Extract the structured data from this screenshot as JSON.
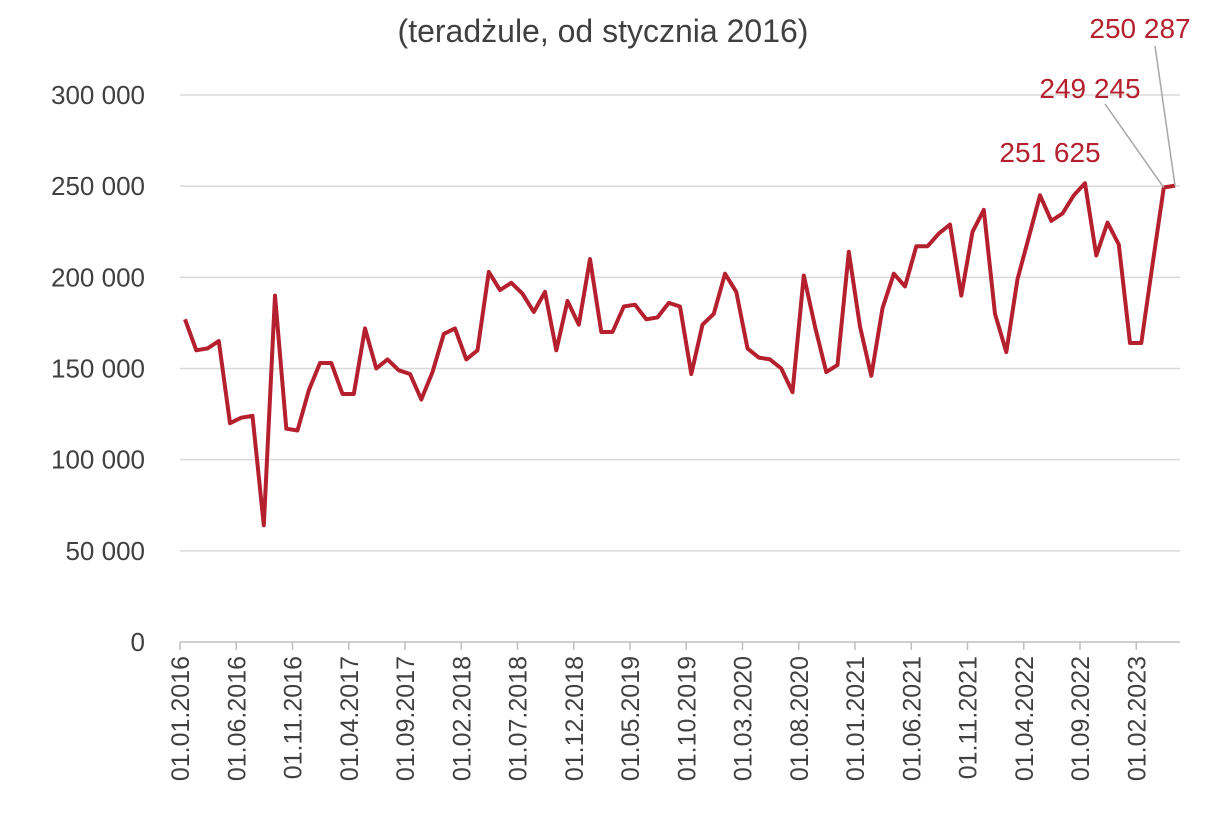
{
  "chart_data": {
    "type": "line",
    "title": "(teradżule, od stycznia 2016)",
    "categories": [
      "01.01.2016",
      null,
      null,
      null,
      null,
      "01.06.2016",
      null,
      null,
      null,
      null,
      "01.11.2016",
      null,
      null,
      null,
      null,
      "01.04.2017",
      null,
      null,
      null,
      null,
      "01.09.2017",
      null,
      null,
      null,
      null,
      "01.02.2018",
      null,
      null,
      null,
      null,
      "01.07.2018",
      null,
      null,
      null,
      null,
      "01.12.2018",
      null,
      null,
      null,
      null,
      "01.05.2019",
      null,
      null,
      null,
      null,
      "01.10.2019",
      null,
      null,
      null,
      null,
      "01.03.2020",
      null,
      null,
      null,
      null,
      "01.08.2020",
      null,
      null,
      null,
      null,
      "01.01.2021",
      null,
      null,
      null,
      null,
      "01.06.2021",
      null,
      null,
      null,
      null,
      "01.11.2021",
      null,
      null,
      null,
      null,
      "01.04.2022",
      null,
      null,
      null,
      null,
      "01.09.2022",
      null,
      null,
      null,
      null,
      "01.02.2023",
      null,
      null,
      null
    ],
    "series": [
      {
        "color": "#b5202e",
        "values": [
          177000,
          160000,
          161000,
          165000,
          120000,
          123000,
          124000,
          64000,
          190000,
          117000,
          116000,
          138000,
          153000,
          153000,
          136000,
          136000,
          172000,
          150000,
          155000,
          149000,
          147000,
          133000,
          148000,
          169000,
          172000,
          155000,
          160000,
          203000,
          193000,
          197000,
          191000,
          181000,
          192000,
          160000,
          187000,
          174000,
          210000,
          170000,
          170000,
          184000,
          185000,
          177000,
          178000,
          186000,
          184000,
          147000,
          174000,
          180000,
          202000,
          192000,
          161000,
          156000,
          155000,
          150000,
          137000,
          201000,
          173000,
          148000,
          152000,
          214000,
          173000,
          146000,
          183000,
          202000,
          195000,
          217000,
          217000,
          224000,
          229000,
          190000,
          225000,
          237000,
          180000,
          159000,
          199000,
          222000,
          245000,
          231000,
          235000,
          245000,
          251625,
          212000,
          230000,
          218000,
          164000,
          164000,
          207000,
          249245,
          250287
        ],
        "value_labels": [
          null,
          null,
          null,
          null,
          null,
          null,
          null,
          null,
          null,
          null,
          null,
          null,
          null,
          null,
          null,
          null,
          null,
          null,
          null,
          null,
          null,
          null,
          null,
          null,
          null,
          null,
          null,
          null,
          null,
          null,
          null,
          null,
          null,
          null,
          null,
          null,
          null,
          null,
          null,
          null,
          null,
          null,
          null,
          null,
          null,
          null,
          null,
          null,
          null,
          null,
          null,
          null,
          null,
          null,
          null,
          null,
          null,
          null,
          null,
          null,
          null,
          null,
          null,
          null,
          null,
          null,
          null,
          null,
          null,
          null,
          null,
          null,
          null,
          null,
          null,
          null,
          null,
          null,
          null,
          null,
          "251 625",
          null,
          null,
          null,
          null,
          null,
          null,
          "249 245",
          "250 287"
        ]
      }
    ],
    "ylim": [
      0,
      300000
    ],
    "yticks": [
      0,
      {
        "value": 50000,
        "label": "50 000"
      },
      {
        "value": 100000,
        "label": "100 000"
      },
      {
        "value": 150000,
        "label": "150 000"
      },
      {
        "value": 200000,
        "label": "200 000"
      },
      {
        "value": 250000,
        "label": "250 000"
      },
      {
        "value": 300000,
        "label": "300 000"
      }
    ],
    "grid": true
  }
}
